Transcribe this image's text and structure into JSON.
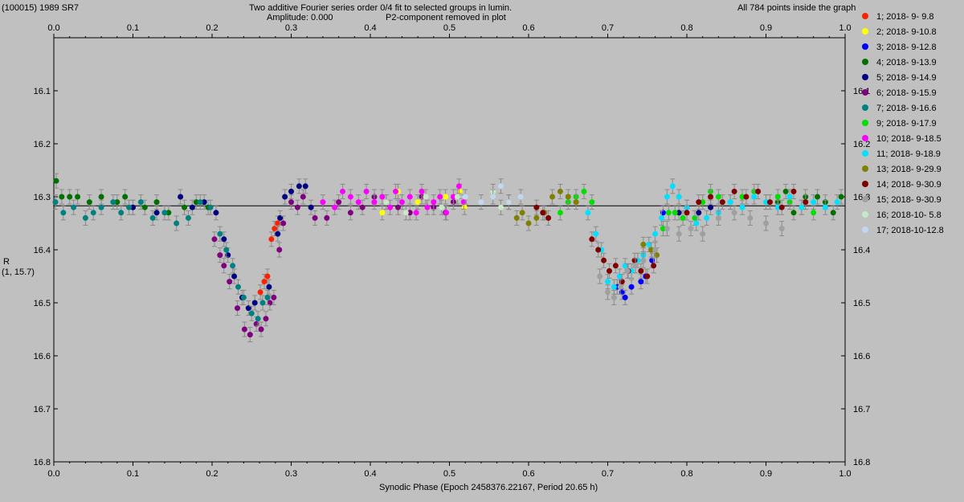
{
  "header": {
    "object": "(100015) 1989 SR7",
    "title_line1": "Two additive Fourier series order 0/4 fit to selected groups in lumin.",
    "title_line2a": "Amplitude: 0.000",
    "title_line2b": "P2-component removed in plot",
    "points_info": "All 784 points inside the graph"
  },
  "axis": {
    "ylabel_line1": "R",
    "ylabel_line2": "(1, 15.7)"
  },
  "chart_data": {
    "type": "scatter",
    "xlabel": "Synodic Phase (Epoch 2458376.22167, Period 20.65 h)",
    "ylabel": "R",
    "xlim": [
      0.0,
      1.0
    ],
    "ylim": [
      16.0,
      16.8
    ],
    "y_inverted": true,
    "x_ticks": [
      0.0,
      0.1,
      0.2,
      0.3,
      0.4,
      0.5,
      0.6,
      0.7,
      0.8,
      0.9,
      1.0
    ],
    "x_tick_labels": [
      "0.0",
      "0.1",
      "0.2",
      "0.3",
      "0.4",
      "0.5",
      "0.6",
      "0.7",
      "0.8",
      "0.9",
      "1.0"
    ],
    "y_ticks": [
      16.1,
      16.2,
      16.3,
      16.4,
      16.5,
      16.6,
      16.7,
      16.8
    ],
    "y_tick_labels": [
      "16.1",
      "16.2",
      "16.3",
      "16.4",
      "16.5",
      "16.6",
      "16.7",
      "16.8"
    ],
    "reference_line_y": 16.317,
    "legend_position": "right",
    "series": [
      {
        "name": "1; 2018- 9- 9.8",
        "color": "#ff2000",
        "points": [
          [
            0.261,
            16.48
          ],
          [
            0.266,
            16.46
          ],
          [
            0.27,
            16.45
          ],
          [
            0.275,
            16.38
          ],
          [
            0.279,
            16.36
          ],
          [
            0.283,
            16.35
          ]
        ]
      },
      {
        "name": "2; 2018- 9-10.8",
        "color": "#ffff00",
        "points": [
          [
            0.415,
            16.33
          ],
          [
            0.435,
            16.29
          ],
          [
            0.46,
            16.31
          ],
          [
            0.495,
            16.3
          ],
          [
            0.513,
            16.29
          ],
          [
            0.519,
            16.32
          ]
        ]
      },
      {
        "name": "3; 2018- 9-12.8",
        "color": "#0000ff",
        "points": [
          [
            0.712,
            16.47
          ],
          [
            0.718,
            16.48
          ],
          [
            0.722,
            16.49
          ],
          [
            0.73,
            16.47
          ],
          [
            0.742,
            16.46
          ],
          [
            0.748,
            16.45
          ],
          [
            0.756,
            16.42
          ],
          [
            0.77,
            16.33
          ]
        ]
      },
      {
        "name": "4; 2018- 9-13.9",
        "color": "#007000",
        "points": [
          [
            0.003,
            16.27
          ],
          [
            0.01,
            16.3
          ],
          [
            0.02,
            16.3
          ],
          [
            0.03,
            16.3
          ],
          [
            0.045,
            16.31
          ],
          [
            0.06,
            16.3
          ],
          [
            0.08,
            16.31
          ],
          [
            0.09,
            16.3
          ],
          [
            0.1,
            16.32
          ],
          [
            0.115,
            16.32
          ],
          [
            0.13,
            16.31
          ],
          [
            0.145,
            16.33
          ],
          [
            0.165,
            16.32
          ],
          [
            0.18,
            16.31
          ],
          [
            0.195,
            16.32
          ],
          [
            0.915,
            16.31
          ],
          [
            0.925,
            16.29
          ],
          [
            0.935,
            16.33
          ],
          [
            0.95,
            16.3
          ],
          [
            0.965,
            16.3
          ],
          [
            0.975,
            16.31
          ],
          [
            0.985,
            16.33
          ],
          [
            0.995,
            16.3
          ]
        ]
      },
      {
        "name": "5; 2018- 9-14.9",
        "color": "#000080",
        "points": [
          [
            0.1,
            16.32
          ],
          [
            0.13,
            16.33
          ],
          [
            0.16,
            16.3
          ],
          [
            0.175,
            16.32
          ],
          [
            0.19,
            16.31
          ],
          [
            0.205,
            16.33
          ],
          [
            0.215,
            16.38
          ],
          [
            0.22,
            16.41
          ],
          [
            0.228,
            16.45
          ],
          [
            0.238,
            16.49
          ],
          [
            0.246,
            16.51
          ],
          [
            0.254,
            16.5
          ],
          [
            0.272,
            16.47
          ],
          [
            0.283,
            16.37
          ],
          [
            0.286,
            16.34
          ],
          [
            0.292,
            16.3
          ],
          [
            0.3,
            16.29
          ],
          [
            0.31,
            16.28
          ],
          [
            0.318,
            16.28
          ],
          [
            0.325,
            16.32
          ],
          [
            0.79,
            16.33
          ],
          [
            0.8,
            16.32
          ],
          [
            0.815,
            16.33
          ],
          [
            0.83,
            16.32
          ]
        ]
      },
      {
        "name": "6; 2018- 9-15.9",
        "color": "#800080",
        "points": [
          [
            0.203,
            16.38
          ],
          [
            0.21,
            16.41
          ],
          [
            0.215,
            16.43
          ],
          [
            0.222,
            16.46
          ],
          [
            0.232,
            16.51
          ],
          [
            0.241,
            16.55
          ],
          [
            0.248,
            16.56
          ],
          [
            0.256,
            16.54
          ],
          [
            0.262,
            16.55
          ],
          [
            0.268,
            16.53
          ],
          [
            0.273,
            16.5
          ],
          [
            0.278,
            16.49
          ],
          [
            0.285,
            16.4
          ],
          [
            0.29,
            16.35
          ],
          [
            0.3,
            16.31
          ],
          [
            0.308,
            16.32
          ],
          [
            0.315,
            16.3
          ],
          [
            0.33,
            16.34
          ],
          [
            0.345,
            16.34
          ],
          [
            0.36,
            16.31
          ],
          [
            0.375,
            16.33
          ],
          [
            0.39,
            16.32
          ],
          [
            0.405,
            16.3
          ],
          [
            0.42,
            16.31
          ],
          [
            0.435,
            16.32
          ],
          [
            0.45,
            16.33
          ],
          [
            0.465,
            16.3
          ],
          [
            0.48,
            16.32
          ],
          [
            0.495,
            16.33
          ],
          [
            0.505,
            16.31
          ]
        ]
      },
      {
        "name": "7; 2018- 9-16.6",
        "color": "#008080",
        "points": [
          [
            0.002,
            16.31
          ],
          [
            0.012,
            16.33
          ],
          [
            0.025,
            16.32
          ],
          [
            0.04,
            16.34
          ],
          [
            0.05,
            16.33
          ],
          [
            0.06,
            16.32
          ],
          [
            0.075,
            16.31
          ],
          [
            0.085,
            16.33
          ],
          [
            0.095,
            16.32
          ],
          [
            0.11,
            16.31
          ],
          [
            0.125,
            16.34
          ],
          [
            0.14,
            16.33
          ],
          [
            0.155,
            16.35
          ],
          [
            0.17,
            16.34
          ],
          [
            0.185,
            16.31
          ],
          [
            0.198,
            16.32
          ],
          [
            0.21,
            16.37
          ],
          [
            0.218,
            16.4
          ],
          [
            0.226,
            16.43
          ],
          [
            0.233,
            16.47
          ],
          [
            0.24,
            16.49
          ],
          [
            0.25,
            16.52
          ],
          [
            0.258,
            16.53
          ],
          [
            0.264,
            16.5
          ],
          [
            0.27,
            16.49
          ]
        ]
      },
      {
        "name": "9; 2018- 9-17.9",
        "color": "#00e000",
        "points": [
          [
            0.64,
            16.33
          ],
          [
            0.65,
            16.31
          ],
          [
            0.66,
            16.3
          ],
          [
            0.67,
            16.29
          ],
          [
            0.68,
            16.31
          ],
          [
            0.76,
            16.4
          ],
          [
            0.77,
            16.36
          ],
          [
            0.777,
            16.33
          ],
          [
            0.785,
            16.33
          ],
          [
            0.795,
            16.34
          ],
          [
            0.81,
            16.34
          ],
          [
            0.82,
            16.31
          ],
          [
            0.83,
            16.29
          ],
          [
            0.84,
            16.3
          ],
          [
            0.855,
            16.31
          ],
          [
            0.87,
            16.3
          ],
          [
            0.885,
            16.29
          ],
          [
            0.9,
            16.31
          ],
          [
            0.915,
            16.3
          ],
          [
            0.93,
            16.31
          ],
          [
            0.945,
            16.32
          ],
          [
            0.96,
            16.33
          ]
        ]
      },
      {
        "name": "10; 2018- 9-18.5",
        "color": "#ff00ff",
        "points": [
          [
            0.34,
            16.31
          ],
          [
            0.355,
            16.32
          ],
          [
            0.365,
            16.29
          ],
          [
            0.375,
            16.3
          ],
          [
            0.385,
            16.31
          ],
          [
            0.395,
            16.29
          ],
          [
            0.405,
            16.31
          ],
          [
            0.415,
            16.3
          ],
          [
            0.425,
            16.32
          ],
          [
            0.432,
            16.29
          ],
          [
            0.44,
            16.31
          ],
          [
            0.45,
            16.3
          ],
          [
            0.458,
            16.33
          ],
          [
            0.465,
            16.29
          ],
          [
            0.472,
            16.32
          ],
          [
            0.48,
            16.31
          ],
          [
            0.488,
            16.3
          ],
          [
            0.496,
            16.33
          ],
          [
            0.505,
            16.3
          ],
          [
            0.512,
            16.28
          ],
          [
            0.518,
            16.31
          ]
        ]
      },
      {
        "name": "11; 2018- 9-18.9",
        "color": "#00e0ff",
        "points": [
          [
            0.675,
            16.33
          ],
          [
            0.685,
            16.37
          ],
          [
            0.692,
            16.4
          ],
          [
            0.7,
            16.46
          ],
          [
            0.708,
            16.47
          ],
          [
            0.715,
            16.45
          ],
          [
            0.722,
            16.43
          ],
          [
            0.73,
            16.44
          ],
          [
            0.738,
            16.42
          ],
          [
            0.745,
            16.41
          ],
          [
            0.752,
            16.39
          ],
          [
            0.76,
            16.37
          ],
          [
            0.768,
            16.34
          ],
          [
            0.775,
            16.3
          ],
          [
            0.782,
            16.28
          ],
          [
            0.79,
            16.3
          ],
          [
            0.8,
            16.32
          ],
          [
            0.812,
            16.35
          ],
          [
            0.825,
            16.34
          ],
          [
            0.84,
            16.33
          ],
          [
            0.855,
            16.31
          ],
          [
            0.87,
            16.32
          ],
          [
            0.885,
            16.3
          ],
          [
            0.9,
            16.31
          ],
          [
            0.915,
            16.32
          ],
          [
            0.93,
            16.3
          ],
          [
            0.945,
            16.32
          ],
          [
            0.96,
            16.31
          ],
          [
            0.975,
            16.32
          ],
          [
            0.99,
            16.31
          ]
        ]
      },
      {
        "name": "13; 2018- 9-29.9",
        "color": "#808000",
        "points": [
          [
            0.575,
            16.31
          ],
          [
            0.585,
            16.34
          ],
          [
            0.592,
            16.33
          ],
          [
            0.6,
            16.35
          ],
          [
            0.61,
            16.34
          ],
          [
            0.62,
            16.33
          ],
          [
            0.63,
            16.3
          ],
          [
            0.64,
            16.29
          ],
          [
            0.65,
            16.3
          ],
          [
            0.66,
            16.31
          ],
          [
            0.745,
            16.39
          ],
          [
            0.755,
            16.4
          ],
          [
            0.762,
            16.41
          ]
        ]
      },
      {
        "name": "14; 2018- 9-30.9",
        "color": "#800000",
        "points": [
          [
            0.61,
            16.32
          ],
          [
            0.618,
            16.33
          ],
          [
            0.625,
            16.34
          ],
          [
            0.68,
            16.38
          ],
          [
            0.688,
            16.4
          ],
          [
            0.695,
            16.42
          ],
          [
            0.702,
            16.44
          ],
          [
            0.71,
            16.43
          ],
          [
            0.718,
            16.46
          ],
          [
            0.726,
            16.44
          ],
          [
            0.734,
            16.42
          ],
          [
            0.742,
            16.44
          ],
          [
            0.75,
            16.45
          ],
          [
            0.758,
            16.43
          ],
          [
            0.8,
            16.33
          ],
          [
            0.815,
            16.31
          ],
          [
            0.83,
            16.3
          ],
          [
            0.845,
            16.31
          ],
          [
            0.86,
            16.29
          ],
          [
            0.875,
            16.3
          ],
          [
            0.89,
            16.29
          ],
          [
            0.905,
            16.31
          ],
          [
            0.92,
            16.32
          ],
          [
            0.935,
            16.29
          ],
          [
            0.95,
            16.31
          ]
        ]
      },
      {
        "name": "15; 2018- 9-30.9",
        "color": "#a0a0a0",
        "points": [
          [
            0.69,
            16.45
          ],
          [
            0.7,
            16.48
          ],
          [
            0.708,
            16.49
          ],
          [
            0.716,
            16.47
          ],
          [
            0.725,
            16.44
          ],
          [
            0.735,
            16.43
          ],
          [
            0.745,
            16.42
          ],
          [
            0.76,
            16.4
          ],
          [
            0.775,
            16.36
          ],
          [
            0.79,
            16.37
          ],
          [
            0.805,
            16.36
          ],
          [
            0.82,
            16.37
          ],
          [
            0.84,
            16.34
          ],
          [
            0.86,
            16.33
          ],
          [
            0.88,
            16.34
          ],
          [
            0.9,
            16.35
          ],
          [
            0.92,
            16.36
          ]
        ]
      },
      {
        "name": "16; 2018-10- 5.8",
        "color": "#c8e8c8",
        "points": [
          [
            0.42,
            16.31
          ],
          [
            0.445,
            16.33
          ],
          [
            0.47,
            16.3
          ],
          [
            0.49,
            16.32
          ],
          [
            0.51,
            16.3
          ],
          [
            0.555,
            16.29
          ],
          [
            0.565,
            16.32
          ]
        ]
      },
      {
        "name": "17; 2018-10-12.8",
        "color": "#c0d8f0",
        "points": [
          [
            0.52,
            16.3
          ],
          [
            0.54,
            16.31
          ],
          [
            0.555,
            16.3
          ],
          [
            0.565,
            16.28
          ],
          [
            0.575,
            16.31
          ],
          [
            0.59,
            16.3
          ]
        ]
      }
    ]
  }
}
